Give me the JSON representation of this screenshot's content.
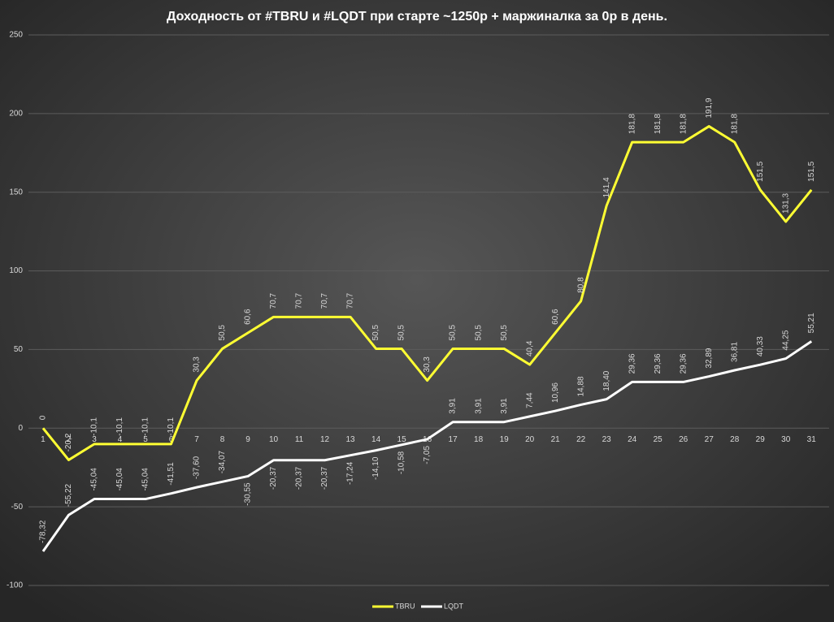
{
  "chart_data": {
    "type": "line",
    "title": "Доходность от #TBRU и #LQDT при старте ~1250р + маржиналка за 0р в день.",
    "categories": [
      "1",
      "2",
      "3",
      "4",
      "5",
      "6",
      "7",
      "8",
      "9",
      "10",
      "11",
      "12",
      "13",
      "14",
      "15",
      "16",
      "17",
      "18",
      "19",
      "20",
      "21",
      "22",
      "23",
      "24",
      "25",
      "26",
      "27",
      "28",
      "29",
      "30",
      "31"
    ],
    "series": [
      {
        "name": "TBRU",
        "color": "#ffff33",
        "values": [
          0,
          -20.2,
          -10.1,
          -10.1,
          -10.1,
          -10.1,
          30.3,
          50.5,
          60.6,
          70.7,
          70.7,
          70.7,
          70.7,
          50.5,
          50.5,
          30.3,
          50.5,
          50.5,
          50.5,
          40.4,
          60.6,
          80.8,
          141.4,
          181.8,
          181.8,
          181.8,
          191.9,
          181.8,
          151.5,
          131.3,
          151.5
        ],
        "value_labels": [
          "0",
          "-20,2",
          "-10,1",
          "-10,1",
          "-10,1",
          "-10,1",
          "30,3",
          "50,5",
          "60,6",
          "70,7",
          "70,7",
          "70,7",
          "70,7",
          "50,5",
          "50,5",
          "30,3",
          "50,5",
          "50,5",
          "50,5",
          "40,4",
          "60,6",
          "80,8",
          "141,4",
          "181,8",
          "181,8",
          "181,8",
          "191,9",
          "181,8",
          "151,5",
          "131,3",
          "151,5"
        ]
      },
      {
        "name": "LQDT",
        "color": "#ffffff",
        "values": [
          -78.32,
          -55.22,
          -45.04,
          -45.04,
          -45.04,
          -41.51,
          -37.6,
          -34.07,
          -30.55,
          -20.37,
          -20.37,
          -20.37,
          -17.24,
          -14.1,
          -10.58,
          -7.05,
          3.91,
          3.91,
          3.91,
          7.44,
          10.96,
          14.88,
          18.4,
          29.36,
          29.36,
          29.36,
          32.89,
          36.81,
          40.33,
          44.25,
          55.21
        ],
        "value_labels": [
          "-78,32",
          "-55,22",
          "-45,04",
          "-45,04",
          "-45,04",
          "-41,51",
          "-37,60",
          "-34,07",
          "-30,55",
          "-20,37",
          "-20,37",
          "-20,37",
          "-17,24",
          "-14,10",
          "-10,58",
          "-7,05",
          "3,91",
          "3,91",
          "3,91",
          "7,44",
          "10,96",
          "14,88",
          "18,40",
          "29,36",
          "29,36",
          "29,36",
          "32,89",
          "36,81",
          "40,33",
          "44,25",
          "55,21"
        ]
      }
    ],
    "ylim": [
      -100,
      250
    ],
    "yticks": [
      -100,
      -50,
      0,
      50,
      100,
      150,
      200,
      250
    ],
    "grid": true,
    "legend": "bottom"
  }
}
